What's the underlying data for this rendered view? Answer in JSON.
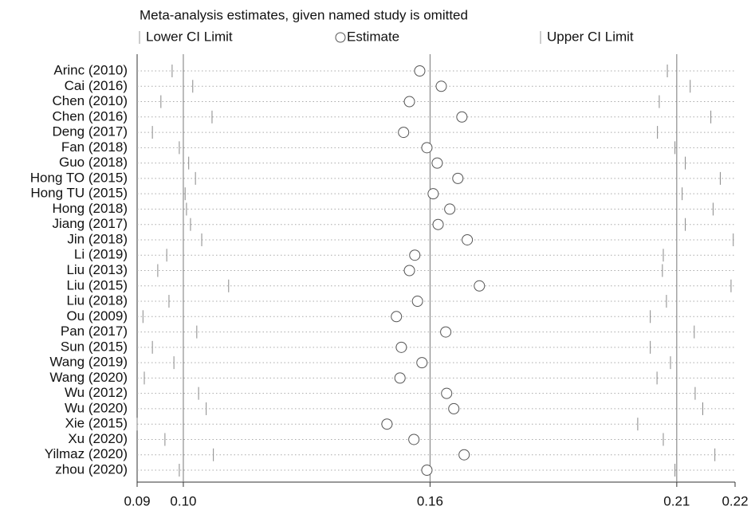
{
  "chart_data": {
    "type": "forest",
    "title": "Meta-analysis estimates, given named study is omitted",
    "categories": [
      "Arinc (2010)",
      "Cai (2016)",
      "Chen (2010)",
      "Chen (2016)",
      "Deng (2017)",
      "Fan (2018)",
      "Guo (2018)",
      "Hong TO (2015)",
      "Hong TU (2015)",
      "Hong (2018)",
      "Jiang (2017)",
      "Jin (2018)",
      "Li (2019)",
      "Liu (2013)",
      "Liu (2015)",
      "Liu (2018)",
      "Ou (2009)",
      "Pan (2017)",
      "Sun (2015)",
      "Wang (2019)",
      "Wang (2020)",
      "Wu (2012)",
      "Wu (2020)",
      "Xie (2015)",
      "Xu (2020)",
      "Yilmaz (2020)",
      "zhou (2020)"
    ],
    "series": [
      {
        "name": "Lower CI Limit",
        "color": "#555555",
        "values": [
          0.0985,
          0.1031,
          0.096,
          0.1074,
          0.0941,
          0.1001,
          0.1022,
          0.1037,
          0.1014,
          0.1017,
          0.1026,
          0.1051,
          0.0973,
          0.0953,
          0.1111,
          0.0978,
          0.092,
          0.104,
          0.0941,
          0.0989,
          0.0923,
          0.1044,
          0.1061,
          0.0907,
          0.0969,
          0.1077,
          0.1001
        ]
      },
      {
        "name": "Estimate",
        "color": "#555555",
        "values": [
          0.1537,
          0.1585,
          0.1514,
          0.1631,
          0.1501,
          0.1553,
          0.1576,
          0.1622,
          0.1567,
          0.1604,
          0.1578,
          0.1643,
          0.1526,
          0.1514,
          0.167,
          0.1532,
          0.1485,
          0.1595,
          0.1496,
          0.1542,
          0.1493,
          0.1597,
          0.1613,
          0.1464,
          0.1524,
          0.1636,
          0.1553
        ]
      },
      {
        "name": "Upper CI Limit",
        "color": "#555555",
        "values": [
          0.2089,
          0.214,
          0.2071,
          0.2186,
          0.2067,
          0.2106,
          0.2129,
          0.2207,
          0.2122,
          0.2191,
          0.2129,
          0.2236,
          0.208,
          0.2078,
          0.2231,
          0.2087,
          0.2051,
          0.2149,
          0.2051,
          0.2096,
          0.2066,
          0.2151,
          0.2168,
          0.2023,
          0.208,
          0.2195,
          0.2106
        ]
      }
    ],
    "xlim": [
      0.0907,
      0.224
    ],
    "xticks": [
      {
        "value": 0.0907,
        "label": "0.09"
      },
      {
        "value": 0.101,
        "label": "0.10"
      },
      {
        "value": 0.156,
        "label": "0.16"
      },
      {
        "value": 0.211,
        "label": "0.21"
      },
      {
        "value": 0.224,
        "label": "0.22"
      }
    ],
    "grid": true
  }
}
